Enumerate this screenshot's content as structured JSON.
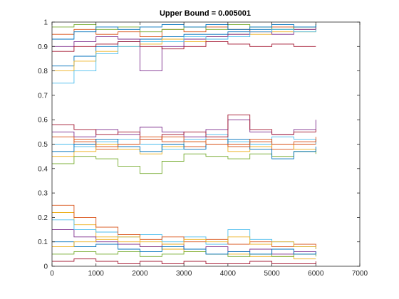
{
  "chart_data": {
    "type": "line",
    "title": "Upper Bound = 0.005001",
    "xlabel": "",
    "ylabel": "",
    "xlim": [
      0,
      7000
    ],
    "ylim": [
      0,
      1
    ],
    "x_ticks": [
      0,
      1000,
      2000,
      3000,
      4000,
      5000,
      6000,
      7000
    ],
    "x_tick_labels": [
      "0",
      "1000",
      "2000",
      "3000",
      "4000",
      "5000",
      "6000",
      "7000"
    ],
    "y_ticks": [
      0,
      0.1,
      0.2,
      0.3,
      0.4,
      0.5,
      0.6,
      0.7,
      0.8,
      0.9,
      1
    ],
    "y_tick_labels": [
      "0",
      "0.1",
      "0.2",
      "0.3",
      "0.4",
      "0.5",
      "0.6",
      "0.7",
      "0.8",
      "0.9",
      "1"
    ],
    "grid": false,
    "legend": "none",
    "x": [
      0,
      500,
      1000,
      1500,
      2000,
      2500,
      3000,
      3500,
      4000,
      4500,
      5000,
      5500,
      6000
    ],
    "series": [
      {
        "values": [
          0.82,
          0.86,
          0.9,
          0.92,
          0.93,
          0.94,
          0.95,
          0.95,
          0.96,
          0.97,
          0.97,
          0.98,
          0.99
        ]
      },
      {
        "values": [
          0.95,
          0.97,
          0.95,
          0.96,
          0.94,
          0.97,
          0.96,
          0.98,
          0.97,
          0.96,
          0.98,
          0.97,
          0.98
        ]
      },
      {
        "values": [
          0.8,
          0.84,
          0.88,
          0.9,
          0.91,
          0.93,
          0.92,
          0.94,
          0.95,
          0.95,
          0.96,
          0.96,
          0.97
        ]
      },
      {
        "values": [
          0.9,
          0.92,
          0.94,
          0.93,
          0.8,
          0.9,
          0.93,
          0.94,
          0.95,
          0.96,
          0.95,
          0.97,
          0.98
        ]
      },
      {
        "values": [
          0.98,
          0.99,
          0.97,
          0.98,
          0.96,
          0.97,
          0.98,
          0.97,
          0.99,
          0.98,
          0.97,
          0.98,
          0.99
        ]
      },
      {
        "values": [
          0.75,
          0.8,
          0.87,
          0.9,
          0.92,
          0.92,
          0.94,
          0.93,
          0.94,
          0.96,
          0.97,
          0.96,
          0.97
        ]
      },
      {
        "values": [
          0.88,
          0.9,
          0.91,
          0.92,
          0.9,
          0.89,
          0.9,
          0.92,
          0.91,
          0.9,
          0.91,
          0.9,
          0.9
        ]
      },
      {
        "values": [
          0.93,
          0.96,
          0.98,
          0.97,
          0.98,
          0.99,
          0.98,
          0.99,
          0.97,
          0.98,
          0.99,
          0.98,
          0.99
        ]
      },
      {
        "values": [
          0.5,
          0.52,
          0.48,
          0.5,
          0.53,
          0.51,
          0.49,
          0.52,
          0.5,
          0.51,
          0.48,
          0.5,
          0.52
        ]
      },
      {
        "values": [
          0.45,
          0.47,
          0.5,
          0.48,
          0.46,
          0.49,
          0.51,
          0.5,
          0.47,
          0.49,
          0.5,
          0.48,
          0.47
        ]
      },
      {
        "values": [
          0.55,
          0.53,
          0.56,
          0.54,
          0.57,
          0.55,
          0.53,
          0.56,
          0.6,
          0.55,
          0.54,
          0.56,
          0.6
        ]
      },
      {
        "values": [
          0.42,
          0.45,
          0.44,
          0.41,
          0.38,
          0.43,
          0.46,
          0.45,
          0.44,
          0.46,
          0.45,
          0.47,
          0.46
        ]
      },
      {
        "values": [
          0.5,
          0.49,
          0.51,
          0.52,
          0.5,
          0.48,
          0.52,
          0.54,
          0.51,
          0.5,
          0.53,
          0.52,
          0.5
        ]
      },
      {
        "values": [
          0.58,
          0.56,
          0.54,
          0.55,
          0.52,
          0.54,
          0.55,
          0.53,
          0.62,
          0.56,
          0.54,
          0.55,
          0.56
        ]
      },
      {
        "values": [
          0.47,
          0.5,
          0.52,
          0.49,
          0.47,
          0.5,
          0.48,
          0.5,
          0.52,
          0.48,
          0.44,
          0.47,
          0.49
        ]
      },
      {
        "values": [
          0.53,
          0.51,
          0.49,
          0.5,
          0.52,
          0.53,
          0.51,
          0.5,
          0.49,
          0.52,
          0.5,
          0.51,
          0.53
        ]
      },
      {
        "values": [
          0.22,
          0.17,
          0.12,
          0.1,
          0.08,
          0.07,
          0.06,
          0.05,
          0.05,
          0.04,
          0.04,
          0.03,
          0.03
        ]
      },
      {
        "values": [
          0.15,
          0.12,
          0.1,
          0.09,
          0.08,
          0.09,
          0.07,
          0.08,
          0.06,
          0.07,
          0.05,
          0.06,
          0.05
        ]
      },
      {
        "values": [
          0.05,
          0.06,
          0.05,
          0.06,
          0.04,
          0.05,
          0.06,
          0.05,
          0.04,
          0.05,
          0.04,
          0.05,
          0.04
        ]
      },
      {
        "values": [
          0.19,
          0.15,
          0.14,
          0.12,
          0.13,
          0.1,
          0.12,
          0.09,
          0.15,
          0.11,
          0.1,
          0.08,
          0.07
        ]
      },
      {
        "values": [
          0.02,
          0.03,
          0.02,
          0.01,
          0.02,
          0.01,
          0.02,
          0.01,
          0.01,
          0.02,
          0.01,
          0.01,
          0.02
        ]
      },
      {
        "values": [
          0.1,
          0.08,
          0.09,
          0.07,
          0.06,
          0.08,
          0.07,
          0.05,
          0.06,
          0.05,
          0.07,
          0.05,
          0.06
        ]
      },
      {
        "values": [
          0.25,
          0.2,
          0.16,
          0.13,
          0.11,
          0.12,
          0.1,
          0.11,
          0.09,
          0.1,
          0.08,
          0.09,
          0.08
        ]
      },
      {
        "values": [
          0.08,
          0.1,
          0.11,
          0.12,
          0.1,
          0.09,
          0.11,
          0.1,
          0.12,
          0.09,
          0.1,
          0.08,
          0.07
        ]
      }
    ],
    "colors": [
      "#0072BD",
      "#D95319",
      "#EDB120",
      "#7E2F8E",
      "#77AC30",
      "#4DBEEE",
      "#A2142F"
    ]
  }
}
